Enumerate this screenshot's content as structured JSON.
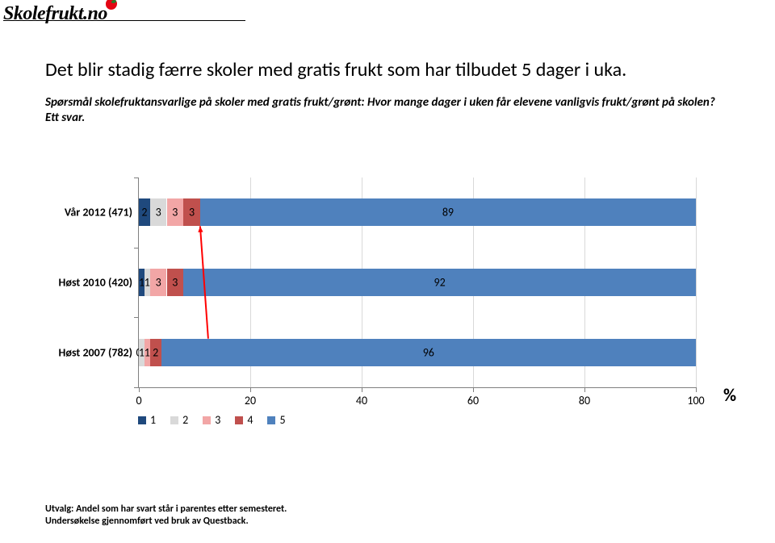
{
  "logo": {
    "text": "Skolefrukt.no"
  },
  "title": "Det blir stadig færre skoler med gratis frukt som har tilbudet 5 dager i uka.",
  "subtitle": "Spørsmål skolefruktansvarlige på skoler med gratis frukt/grønt: Hvor mange dager i uken får elevene vanligvis frukt/grønt på skolen? Ett svar.",
  "chart": {
    "type": "stacked-bar-horizontal",
    "xlim": [
      0,
      100
    ],
    "xtick_step": 20,
    "xticks": [
      0,
      20,
      40,
      60,
      80,
      100
    ],
    "percent_symbol": "%",
    "grid_color": "#d9d9d9",
    "axis_color": "#808080",
    "background_color": "#ffffff",
    "label_fontsize": 14,
    "series": [
      {
        "name": "1",
        "color": "#1f497d"
      },
      {
        "name": "2",
        "color": "#d9d9d9"
      },
      {
        "name": "3",
        "color": "#f2a6a6"
      },
      {
        "name": "4",
        "color": "#c0504d"
      },
      {
        "name": "5",
        "color": "#4f81bd"
      }
    ],
    "categories": [
      {
        "label": "Vår 2012 (471)",
        "values": [
          2,
          3,
          3,
          3,
          89
        ],
        "labels": [
          "2",
          "3",
          "3",
          "3",
          "89"
        ]
      },
      {
        "label": "Høst 2010 (420)",
        "values": [
          1,
          1,
          3,
          3,
          92
        ],
        "labels": [
          "1",
          "1",
          "3",
          "3",
          "92"
        ]
      },
      {
        "label": "Høst 2007 (782)",
        "values": [
          0,
          1,
          1,
          2,
          96
        ],
        "labels": [
          "0",
          "1",
          "1",
          "2",
          "96"
        ]
      }
    ],
    "arrow": {
      "color": "#ff0000",
      "from_cat": 2,
      "to_cat": 0
    }
  },
  "footer": {
    "line1": "Utvalg: Andel som har svart står i parentes etter semesteret.",
    "line2": "Undersøkelse gjennomført ved bruk av Questback."
  }
}
